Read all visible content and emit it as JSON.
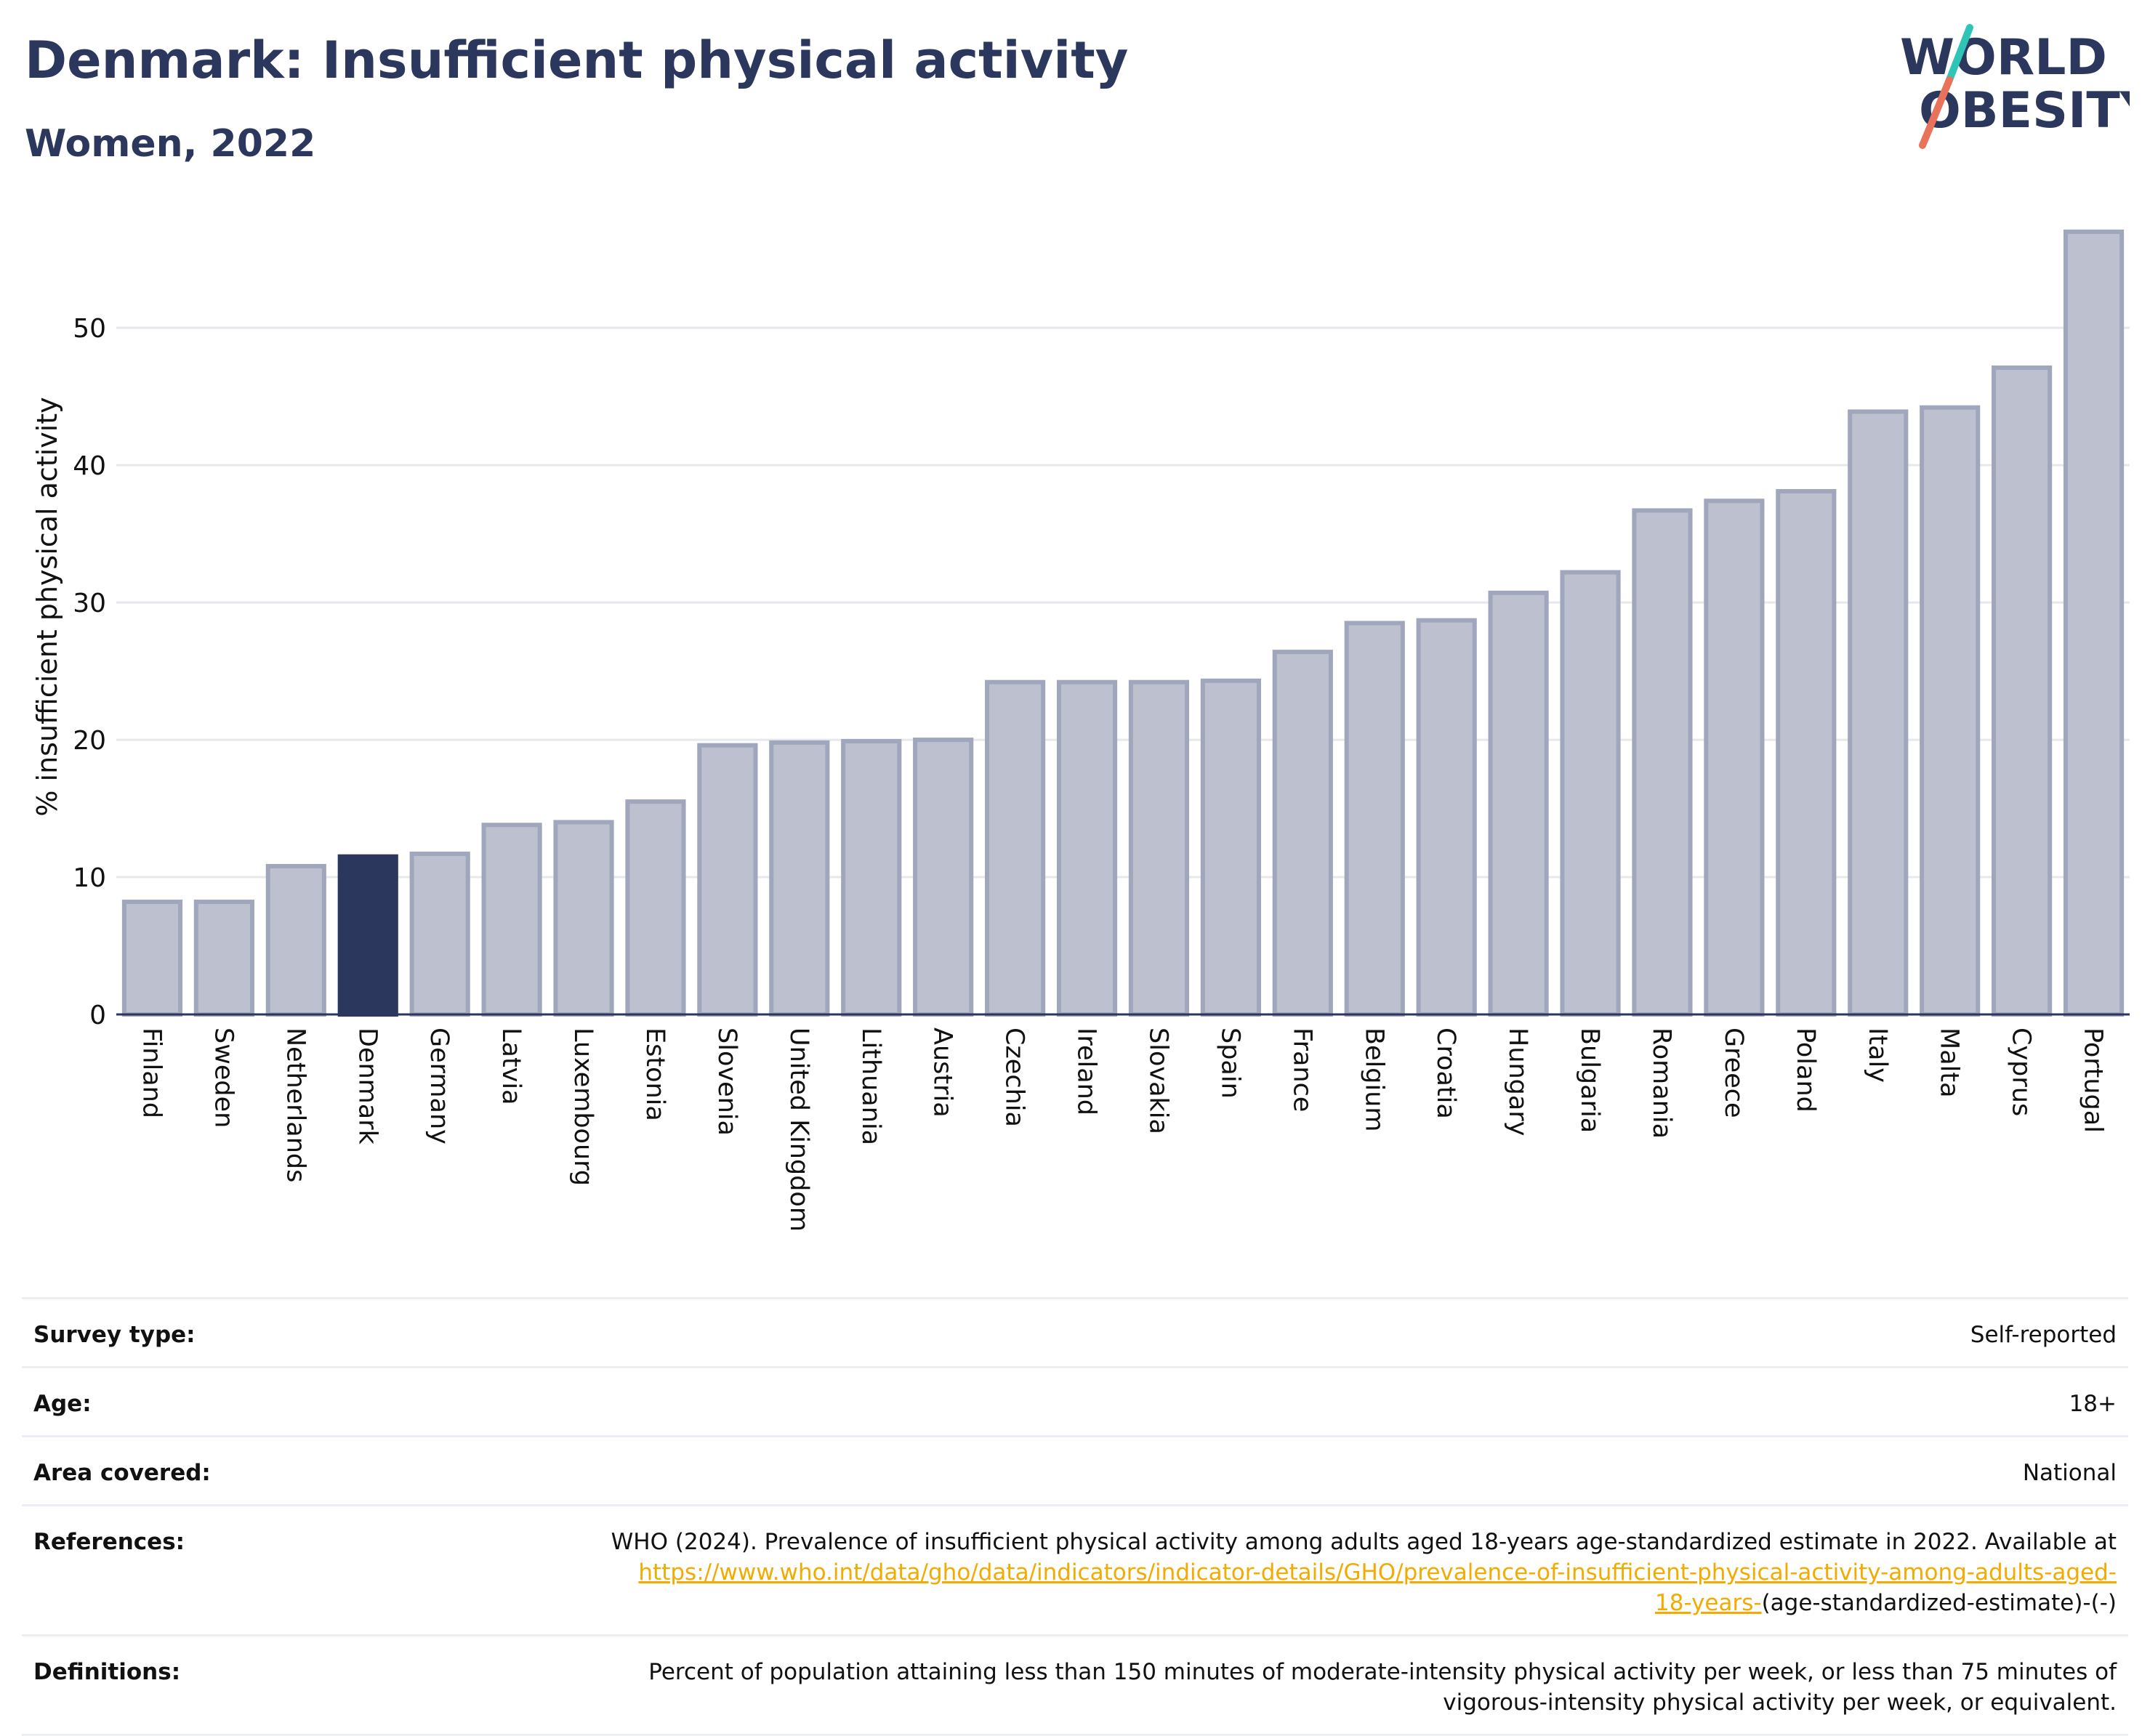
{
  "header": {
    "title": "Denmark: Insufficient physical activity",
    "subtitle": "Women, 2022"
  },
  "logo": {
    "line1": "WORLD",
    "line2": "OBESITY",
    "colors": {
      "text": "#2b375c",
      "slash_top": "#2ec4b6",
      "slash_bottom": "#e8735a"
    }
  },
  "colors": {
    "highlight": "#2b375c",
    "bar_fill": "#bcc0cf",
    "bar_stroke": "#a0a6bc",
    "gridline": "#e6e8ee",
    "link": "#f2ab00"
  },
  "chart_data": {
    "type": "bar",
    "ylabel": "% insufficient physical activity",
    "ylim": [
      0,
      58
    ],
    "yticks": [
      0,
      10,
      20,
      30,
      40,
      50
    ],
    "highlight": "Denmark",
    "grid": true,
    "categories": [
      "Finland",
      "Sweden",
      "Netherlands",
      "Denmark",
      "Germany",
      "Latvia",
      "Luxembourg",
      "Estonia",
      "Slovenia",
      "United Kingdom",
      "Lithuania",
      "Austria",
      "Czechia",
      "Ireland",
      "Slovakia",
      "Spain",
      "France",
      "Belgium",
      "Croatia",
      "Hungary",
      "Bulgaria",
      "Romania",
      "Greece",
      "Poland",
      "Italy",
      "Malta",
      "Cyprus",
      "Portugal"
    ],
    "values": [
      8.2,
      8.2,
      10.8,
      11.5,
      11.7,
      13.8,
      14.0,
      15.5,
      19.6,
      19.8,
      19.9,
      20.0,
      24.2,
      24.2,
      24.2,
      24.3,
      26.4,
      28.5,
      28.7,
      30.7,
      32.2,
      36.7,
      37.4,
      38.1,
      43.9,
      44.2,
      47.1,
      57.0
    ]
  },
  "info": {
    "survey_type": {
      "label": "Survey type:",
      "value": "Self-reported"
    },
    "age": {
      "label": "Age:",
      "value": "18+"
    },
    "area": {
      "label": "Area covered:",
      "value": "National"
    },
    "references": {
      "label": "References:",
      "text_line1": "WHO (2024). Prevalence of insufficient physical activity among adults aged 18-years age-standardized estimate in 2022. Available at",
      "link_line2": "https://www.who.int/data/gho/data/indicators/indicator-details/GHO/prevalence-of-insufficient-physical-activity-among-adults-aged-",
      "link_line3": "18-years-",
      "suffix": "(age-standardized-estimate)-(-)"
    },
    "definitions": {
      "label": "Definitions:",
      "line1": "Percent of population attaining less than 150 minutes of moderate-intensity physical activity per week, or less than 75 minutes of",
      "line2": "vigorous-intensity physical activity per week, or equivalent."
    }
  }
}
